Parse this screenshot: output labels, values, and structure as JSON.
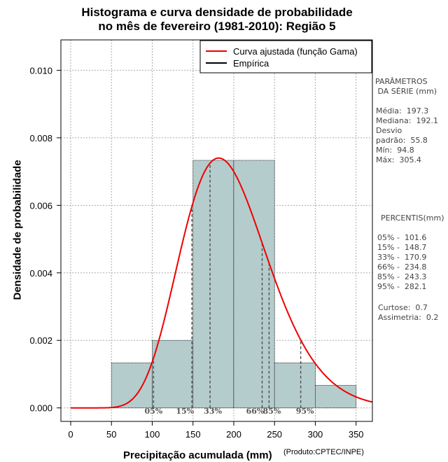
{
  "title": {
    "line1": "Histograma e curva densidade de probabilidade",
    "line2": "no mês de fevereiro (1981-2010): Região 5"
  },
  "chart_data": {
    "type": "bar",
    "title": "Histograma e curva densidade de probabilidade no mês de fevereiro (1981-2010): Região 5",
    "xlabel": "Precipitação acumulada (mm)",
    "ylabel": "Densidade de probabilidade",
    "xlim": [
      -12,
      370
    ],
    "ylim": [
      -0.0004,
      0.0109
    ],
    "grid": true,
    "x_ticks": [
      0,
      50,
      100,
      150,
      200,
      250,
      300,
      350
    ],
    "y_ticks": [
      0.0,
      0.002,
      0.004,
      0.006,
      0.008,
      0.01
    ],
    "y_tick_labels": [
      "0.000",
      "0.002",
      "0.004",
      "0.006",
      "0.008",
      "0.010"
    ],
    "bins": [
      {
        "x0": 50,
        "x1": 100,
        "density": 0.001333
      },
      {
        "x0": 100,
        "x1": 150,
        "density": 0.002
      },
      {
        "x0": 150,
        "x1": 200,
        "density": 0.007333
      },
      {
        "x0": 200,
        "x1": 250,
        "density": 0.007333
      },
      {
        "x0": 250,
        "x1": 300,
        "density": 0.001333
      },
      {
        "x0": 300,
        "x1": 350,
        "density": 0.000667
      }
    ],
    "bar_color": "#b5cccc",
    "curve": {
      "name": "Curva ajustada (função Gama)",
      "color": "#ee0000",
      "mean": 197.3,
      "sd": 55.8,
      "x_start": 0,
      "x_end": 370
    },
    "empirical": {
      "name": "Empírica",
      "color": "#000000"
    },
    "legend_position": "top-right",
    "percentile_lines": [
      {
        "label": "05%",
        "x": 101.6
      },
      {
        "label": "15%",
        "x": 148.7
      },
      {
        "label": "33%",
        "x": 170.9
      },
      {
        "label": "66%",
        "x": 234.8
      },
      {
        "label": "85%",
        "x": 243.3
      },
      {
        "label": "95%",
        "x": 282.1
      }
    ]
  },
  "side_panel": {
    "params_heading": "PARÂMETROS\n DA SÉRIE (mm)",
    "params": "Média:  197.3\nMediana:  192.1\nDesvio\npadrão:  55.8\nMín:  94.8\nMáx:  305.4",
    "percentis_heading": "PERCENTIS(mm)",
    "percentis": "05% -  101.6\n15% -  148.7\n33% -  170.9\n66% -  234.8\n85% -  243.3\n95% -  282.1",
    "shape": "Curtose:  0.7\nAssimetria:  0.2"
  },
  "axis": {
    "xlabel": "Precipitação acumulada (mm)",
    "ylabel": "Densidade de probabilidade",
    "credit": "(Produto:CPTEC/INPE)"
  },
  "colors": {
    "bar": "#b5cccc",
    "curve": "#ee0000",
    "grid": "#aaaaaa",
    "percentile": "#555555"
  }
}
